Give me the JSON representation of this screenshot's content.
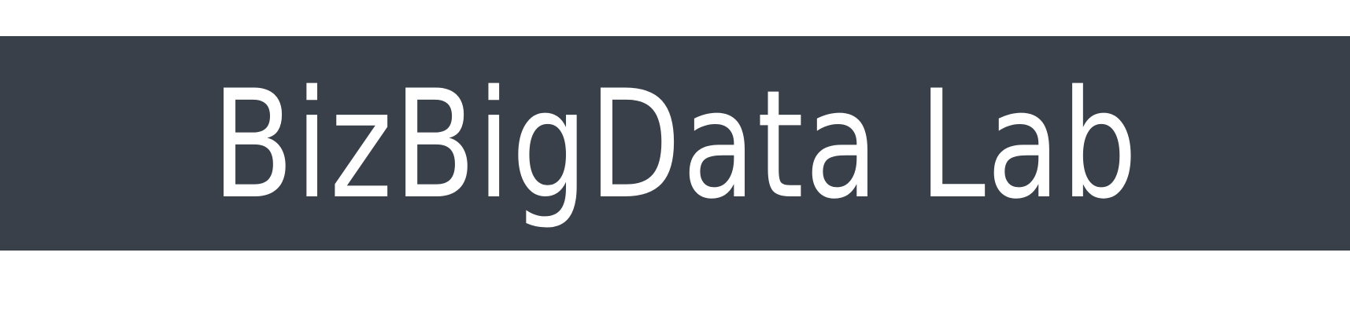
{
  "banner": {
    "title": "BizBigData Lab",
    "background_color": "#394049",
    "text_color": "#ffffff"
  },
  "page": {
    "background_color": "#ffffff"
  }
}
